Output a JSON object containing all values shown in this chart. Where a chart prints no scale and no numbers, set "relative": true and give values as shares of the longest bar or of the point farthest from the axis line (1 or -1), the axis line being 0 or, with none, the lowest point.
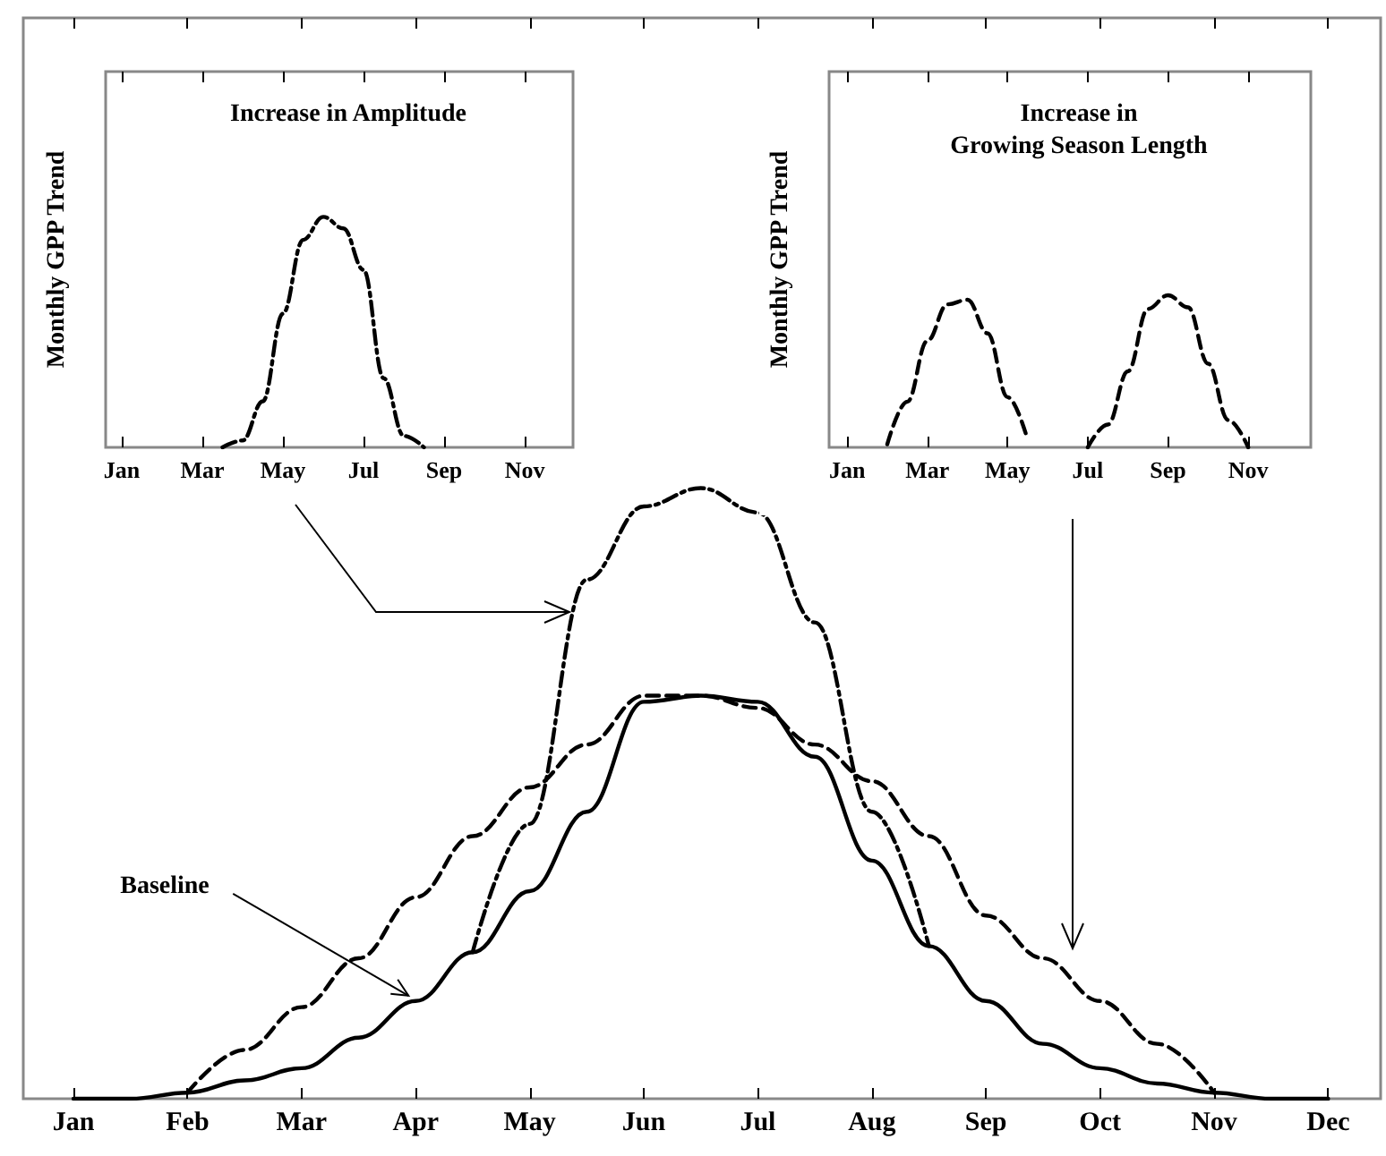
{
  "chart_data": [
    {
      "type": "line",
      "relative": true,
      "grid": false,
      "categories": [
        "Jan",
        null,
        "Feb",
        null,
        "Mar",
        null,
        "Apr",
        null,
        "May",
        null,
        "Jun",
        null,
        "Jul",
        null,
        "Aug",
        null,
        "Sep",
        null,
        "Oct",
        null,
        "Nov",
        null,
        "Dec"
      ],
      "series": [
        {
          "color": "#000000",
          "line_style": "solid",
          "values": [
            0,
            0,
            0.01,
            0.03,
            0.05,
            0.1,
            0.16,
            0.24,
            0.34,
            0.47,
            0.65,
            0.66,
            0.65,
            0.56,
            0.39,
            0.25,
            0.16,
            0.09,
            0.05,
            0.025,
            0.01,
            0,
            0
          ]
        },
        {
          "color": "#000000",
          "line_style": "dashdot",
          "values": [
            null,
            null,
            null,
            null,
            null,
            null,
            null,
            0.24,
            0.45,
            0.85,
            0.97,
            1.0,
            0.96,
            0.78,
            0.47,
            0.25,
            null,
            null,
            null,
            null,
            null,
            null,
            null
          ]
        },
        {
          "color": "#000000",
          "line_style": "dashed",
          "values": [
            null,
            null,
            0.01,
            0.08,
            0.15,
            0.23,
            0.33,
            0.43,
            0.51,
            0.58,
            0.66,
            0.66,
            0.64,
            0.58,
            0.52,
            0.43,
            0.3,
            0.23,
            0.16,
            0.09,
            0.01,
            null,
            null
          ]
        }
      ],
      "annotations": [
        {
          "text": "Baseline",
          "x": "Apr",
          "y": 0.16
        }
      ]
    },
    {
      "type": "line",
      "relative": true,
      "grid": false,
      "title": "Increase in Amplitude",
      "ylabel": "Monthly GPP Trend",
      "categories": [
        "Jan",
        null,
        null,
        null,
        "Mar",
        null,
        null,
        null,
        "May",
        null,
        null,
        null,
        "Jul",
        null,
        null,
        null,
        "Sep",
        null,
        null,
        null,
        "Nov",
        null,
        null
      ],
      "series": [
        {
          "color": "#000000",
          "line_style": "dashdot",
          "values": [
            null,
            null,
            null,
            null,
            null,
            0,
            0.03,
            0.2,
            0.58,
            0.9,
            1.0,
            0.95,
            0.77,
            0.3,
            0.05,
            0,
            null,
            null,
            null,
            null,
            null,
            null,
            null
          ]
        }
      ]
    },
    {
      "type": "line",
      "relative": true,
      "grid": false,
      "title": "Increase in\nGrowing Season Length",
      "ylabel": "Monthly GPP Trend",
      "categories": [
        "Jan",
        null,
        null,
        null,
        "Mar",
        null,
        null,
        null,
        "May",
        null,
        null,
        null,
        "Jul",
        null,
        null,
        null,
        "Sep",
        null,
        null,
        null,
        "Nov",
        null,
        null
      ],
      "series": [
        {
          "color": "#000000",
          "line_style": "dashed",
          "values": [
            null,
            null,
            0.02,
            0.3,
            0.7,
            0.94,
            0.97,
            0.75,
            0.33,
            0.05,
            null,
            null,
            0,
            0.15,
            0.5,
            0.91,
            1.0,
            0.92,
            0.55,
            0.18,
            0,
            null,
            null
          ]
        }
      ]
    }
  ]
}
